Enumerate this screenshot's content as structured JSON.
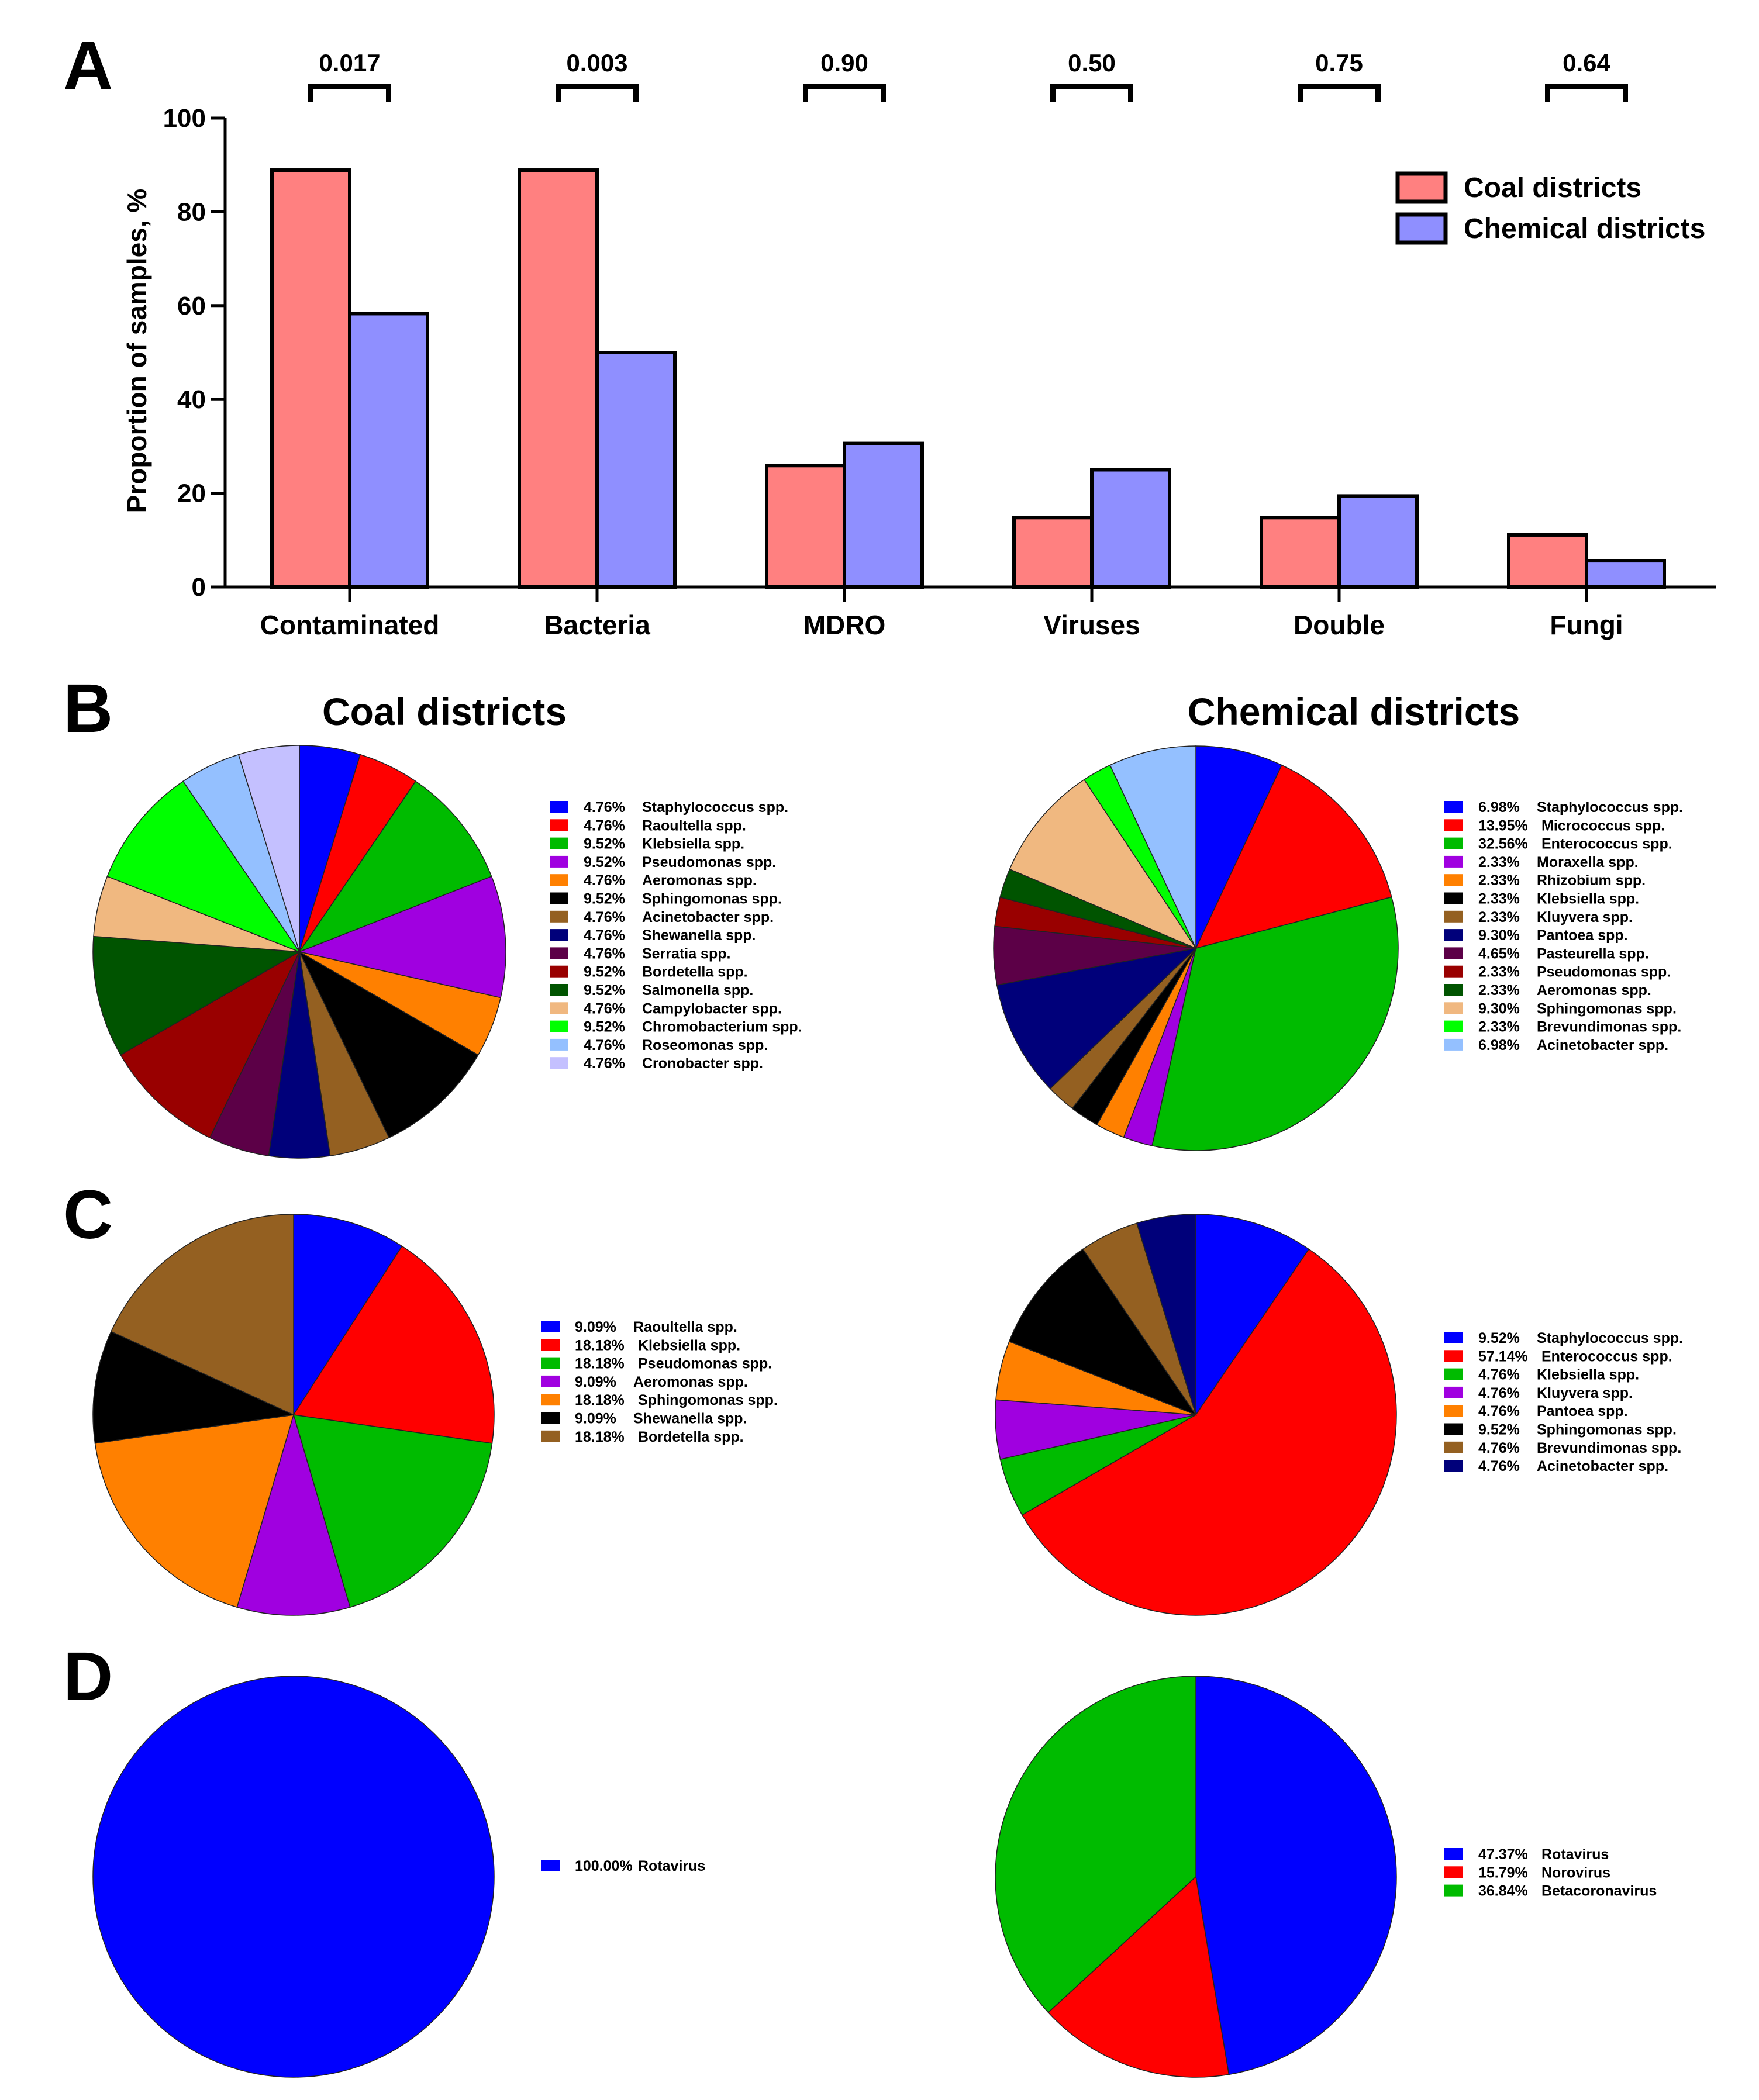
{
  "chart_data": [
    {
      "panel": "A",
      "type": "bar",
      "ylabel": "Proportion of samples, %",
      "ylim": [
        0,
        100
      ],
      "yticks": [
        0,
        20,
        40,
        60,
        80,
        100
      ],
      "categories": [
        "Contaminated",
        "Bacteria",
        "MDRO",
        "Viruses",
        "Double",
        "Fungi"
      ],
      "pvalues": [
        "0.017",
        "0.003",
        "0.90",
        "0.50",
        "0.75",
        "0.64"
      ],
      "series": [
        {
          "name": "Coal districts",
          "color": "#ff8080",
          "values": [
            88.9,
            88.9,
            25.9,
            14.8,
            14.8,
            11.1
          ]
        },
        {
          "name": "Chemical districts",
          "color": "#8f8fff",
          "values": [
            58.3,
            50.0,
            30.6,
            25.0,
            19.4,
            5.6
          ]
        }
      ],
      "legend_position": "top-right"
    },
    {
      "panel": "B",
      "type": "pie",
      "group": "coal",
      "title": "Coal districts",
      "slices": [
        {
          "pct": "4.76%",
          "value": 4.76,
          "label": "Staphylococcus spp.",
          "color": "#0000ff"
        },
        {
          "pct": "4.76%",
          "value": 4.76,
          "label": "Raoultella spp.",
          "color": "#ff0000"
        },
        {
          "pct": "9.52%",
          "value": 9.52,
          "label": "Klebsiella spp.",
          "color": "#00bb00"
        },
        {
          "pct": "9.52%",
          "value": 9.52,
          "label": "Pseudomonas spp.",
          "color": "#a000e0"
        },
        {
          "pct": "4.76%",
          "value": 4.76,
          "label": "Aeromonas spp.",
          "color": "#ff8000"
        },
        {
          "pct": "9.52%",
          "value": 9.52,
          "label": "Sphingomonas spp.",
          "color": "#000000"
        },
        {
          "pct": "4.76%",
          "value": 4.76,
          "label": "Acinetobacter spp.",
          "color": "#946021"
        },
        {
          "pct": "4.76%",
          "value": 4.76,
          "label": "Shewanella spp.",
          "color": "#00007a"
        },
        {
          "pct": "4.76%",
          "value": 4.76,
          "label": "Serratia spp.",
          "color": "#5c0047"
        },
        {
          "pct": "9.52%",
          "value": 9.52,
          "label": "Bordetella spp.",
          "color": "#990000"
        },
        {
          "pct": "9.52%",
          "value": 9.52,
          "label": "Salmonella spp.",
          "color": "#005400"
        },
        {
          "pct": "4.76%",
          "value": 4.76,
          "label": "Campylobacter spp.",
          "color": "#f0b880"
        },
        {
          "pct": "9.52%",
          "value": 9.52,
          "label": "Chromobacterium spp.",
          "color": "#00ff00"
        },
        {
          "pct": "4.76%",
          "value": 4.76,
          "label": "Roseomonas spp.",
          "color": "#94c0ff"
        },
        {
          "pct": "4.76%",
          "value": 4.76,
          "label": "Cronobacter spp.",
          "color": "#c4c0ff"
        }
      ]
    },
    {
      "panel": "B",
      "type": "pie",
      "group": "chemical",
      "title": "Chemical districts",
      "slices": [
        {
          "pct": "6.98%",
          "value": 6.98,
          "label": "Staphylococcus spp.",
          "color": "#0000ff"
        },
        {
          "pct": "13.95%",
          "value": 13.95,
          "label": "Micrococcus spp.",
          "color": "#ff0000"
        },
        {
          "pct": "32.56%",
          "value": 32.56,
          "label": "Enterococcus spp.",
          "color": "#00bb00"
        },
        {
          "pct": "2.33%",
          "value": 2.33,
          "label": "Moraxella spp.",
          "color": "#a000e0"
        },
        {
          "pct": "2.33%",
          "value": 2.33,
          "label": "Rhizobium spp.",
          "color": "#ff8000"
        },
        {
          "pct": "2.33%",
          "value": 2.33,
          "label": "Klebsiella spp.",
          "color": "#000000"
        },
        {
          "pct": "2.33%",
          "value": 2.33,
          "label": "Kluyvera spp.",
          "color": "#946021"
        },
        {
          "pct": "9.30%",
          "value": 9.3,
          "label": "Pantoea spp.",
          "color": "#00007a"
        },
        {
          "pct": "4.65%",
          "value": 4.65,
          "label": "Pasteurella spp.",
          "color": "#5c0047"
        },
        {
          "pct": "2.33%",
          "value": 2.33,
          "label": "Pseudomonas spp.",
          "color": "#990000"
        },
        {
          "pct": "2.33%",
          "value": 2.33,
          "label": "Aeromonas spp.",
          "color": "#005400"
        },
        {
          "pct": "9.30%",
          "value": 9.3,
          "label": "Sphingomonas spp.",
          "color": "#f0b880"
        },
        {
          "pct": "2.33%",
          "value": 2.33,
          "label": "Brevundimonas spp.",
          "color": "#00ff00"
        },
        {
          "pct": "6.98%",
          "value": 6.98,
          "label": "Acinetobacter spp.",
          "color": "#94c0ff"
        }
      ]
    },
    {
      "panel": "C",
      "type": "pie",
      "group": "coal",
      "slices": [
        {
          "pct": "9.09%",
          "value": 9.09,
          "label": "Raoultella spp.",
          "color": "#0000ff"
        },
        {
          "pct": "18.18%",
          "value": 18.18,
          "label": "Klebsiella spp.",
          "color": "#ff0000"
        },
        {
          "pct": "18.18%",
          "value": 18.18,
          "label": "Pseudomonas spp.",
          "color": "#00bb00"
        },
        {
          "pct": "9.09%",
          "value": 9.09,
          "label": "Aeromonas spp.",
          "color": "#a000e0"
        },
        {
          "pct": "18.18%",
          "value": 18.18,
          "label": "Sphingomonas spp.",
          "color": "#ff8000"
        },
        {
          "pct": "9.09%",
          "value": 9.09,
          "label": "Shewanella spp.",
          "color": "#000000"
        },
        {
          "pct": "18.18%",
          "value": 18.18,
          "label": "Bordetella spp.",
          "color": "#946021"
        }
      ]
    },
    {
      "panel": "C",
      "type": "pie",
      "group": "chemical",
      "slices": [
        {
          "pct": "9.52%",
          "value": 9.52,
          "label": "Staphylococcus spp.",
          "color": "#0000ff"
        },
        {
          "pct": "57.14%",
          "value": 57.14,
          "label": "Enterococcus spp.",
          "color": "#ff0000"
        },
        {
          "pct": "4.76%",
          "value": 4.76,
          "label": "Klebsiella spp.",
          "color": "#00bb00"
        },
        {
          "pct": "4.76%",
          "value": 4.76,
          "label": "Kluyvera spp.",
          "color": "#a000e0"
        },
        {
          "pct": "4.76%",
          "value": 4.76,
          "label": "Pantoea spp.",
          "color": "#ff8000"
        },
        {
          "pct": "9.52%",
          "value": 9.52,
          "label": "Sphingomonas spp.",
          "color": "#000000"
        },
        {
          "pct": "4.76%",
          "value": 4.76,
          "label": "Brevundimonas spp.",
          "color": "#946021"
        },
        {
          "pct": "4.76%",
          "value": 4.76,
          "label": "Acinetobacter spp.",
          "color": "#00007a"
        }
      ]
    },
    {
      "panel": "D",
      "type": "pie",
      "group": "coal",
      "slices": [
        {
          "pct": "100.00%",
          "value": 100.0,
          "label": "Rotavirus",
          "color": "#0000ff"
        }
      ]
    },
    {
      "panel": "D",
      "type": "pie",
      "group": "chemical",
      "slices": [
        {
          "pct": "47.37%",
          "value": 47.37,
          "label": "Rotavirus",
          "color": "#0000ff"
        },
        {
          "pct": "15.79%",
          "value": 15.79,
          "label": "Norovirus",
          "color": "#ff0000"
        },
        {
          "pct": "36.84%",
          "value": 36.84,
          "label": "Betacoronavirus",
          "color": "#00bb00"
        }
      ]
    }
  ],
  "panel_letters": [
    "A",
    "B",
    "C",
    "D"
  ]
}
